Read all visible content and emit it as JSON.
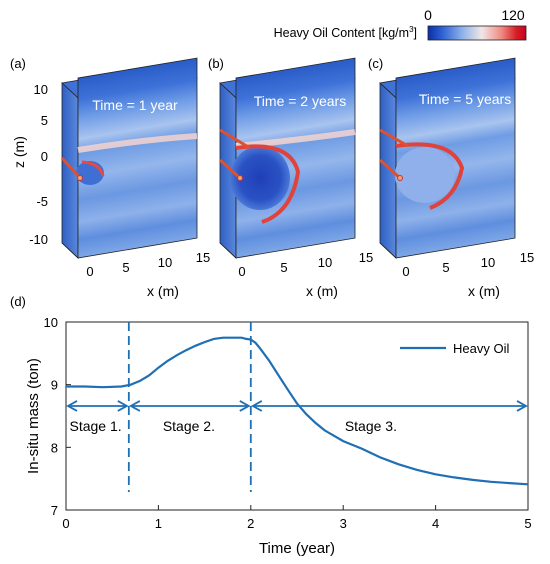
{
  "colorbar": {
    "label": "Heavy Oil Content [kg/m",
    "label_sup": "3",
    "label_end": "]",
    "min_label": "0",
    "max_label": "120",
    "stops": [
      "#0b2fa8",
      "#2f63d6",
      "#8fb2ea",
      "#f1e6e6",
      "#ef8a82",
      "#d61f26",
      "#c8001e"
    ]
  },
  "panels": [
    {
      "id": "(a)",
      "time_label": "Time = 1 year",
      "z_axis_label": "z (m)",
      "z_ticks": [
        "10",
        "5",
        "0",
        "-5",
        "-10"
      ],
      "x_axis_label": "x (m)",
      "x_ticks": [
        "0",
        "5",
        "10",
        "15"
      ]
    },
    {
      "id": "(b)",
      "time_label": "Time = 2 years",
      "x_axis_label": "x (m)",
      "x_ticks": [
        "0",
        "5",
        "10",
        "15"
      ]
    },
    {
      "id": "(c)",
      "time_label": "Time = 5 years",
      "x_axis_label": "x (m)",
      "x_ticks": [
        "0",
        "5",
        "10",
        "15"
      ]
    }
  ],
  "chart_data": {
    "type": "line",
    "panel_label": "(d)",
    "xlabel": "Time (year)",
    "ylabel": "In-situ mass (ton)",
    "xlim": [
      0,
      5
    ],
    "ylim": [
      7,
      10
    ],
    "xticks": [
      "0",
      "1",
      "2",
      "3",
      "4",
      "5"
    ],
    "yticks": [
      "7",
      "8",
      "9",
      "10"
    ],
    "grid": false,
    "legend_position": "top-right",
    "series": [
      {
        "name": "Heavy Oil",
        "color": "#1f6fb5",
        "x": [
          0,
          0.2,
          0.4,
          0.6,
          0.7,
          0.8,
          0.9,
          1.0,
          1.1,
          1.2,
          1.3,
          1.4,
          1.5,
          1.6,
          1.7,
          1.8,
          1.9,
          1.95,
          2.0,
          2.05,
          2.1,
          2.2,
          2.3,
          2.4,
          2.5,
          2.6,
          2.7,
          2.8,
          3.0,
          3.2,
          3.4,
          3.6,
          3.8,
          4.0,
          4.2,
          4.4,
          4.6,
          4.8,
          5.0
        ],
        "y": [
          8.97,
          8.97,
          8.96,
          8.97,
          9.0,
          9.06,
          9.15,
          9.27,
          9.38,
          9.47,
          9.55,
          9.62,
          9.68,
          9.73,
          9.75,
          9.75,
          9.75,
          9.73,
          9.72,
          9.67,
          9.58,
          9.38,
          9.15,
          8.92,
          8.7,
          8.53,
          8.39,
          8.27,
          8.1,
          7.98,
          7.84,
          7.73,
          7.64,
          7.57,
          7.52,
          7.48,
          7.45,
          7.43,
          7.41
        ]
      }
    ],
    "stage_boundaries": [
      0.68,
      2.0
    ],
    "stage_arrow_y": 8.66,
    "stages": [
      {
        "label": "Stage 1.",
        "x": 0.32
      },
      {
        "label": "Stage 2.",
        "x": 1.33
      },
      {
        "label": "Stage 3.",
        "x": 3.3
      }
    ]
  }
}
